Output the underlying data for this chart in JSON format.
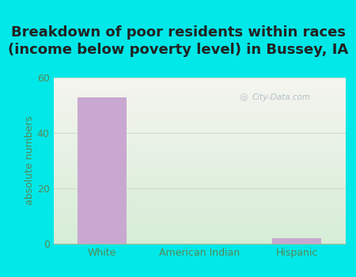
{
  "title": "Breakdown of poor residents within races\n(income below poverty level) in Bussey, IA",
  "categories": [
    "White",
    "American Indian",
    "Hispanic"
  ],
  "values": [
    53,
    0,
    2
  ],
  "bar_color": "#c8a8d0",
  "ylabel": "absolute numbers",
  "ylim": [
    0,
    60
  ],
  "yticks": [
    0,
    20,
    40,
    60
  ],
  "background_outer": "#00e8e8",
  "background_inner_top": "#f0f0e8",
  "background_inner_bottom": "#d8ecd8",
  "title_fontsize": 13,
  "title_color": "#222222",
  "axis_label_fontsize": 9,
  "tick_fontsize": 9,
  "tick_color": "#558855",
  "watermark_text": "City-Data.com",
  "watermark_color": "#aabbc0",
  "grid_color": "#ccddcc"
}
